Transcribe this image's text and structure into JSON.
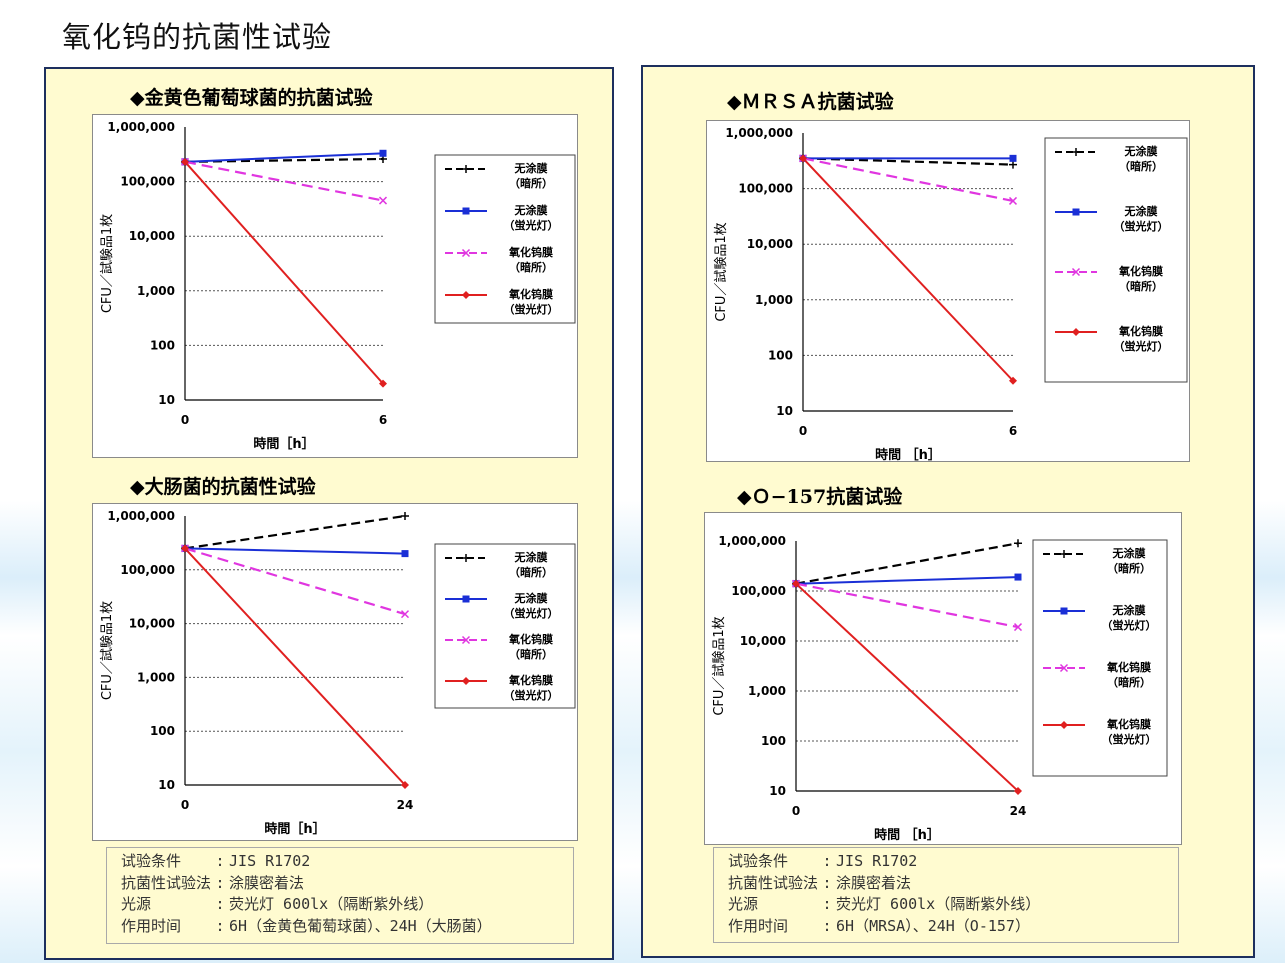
{
  "page_title": "氧化钨的抗菌性试验",
  "legend_labels": {
    "s1": [
      "无涂膜",
      "（暗所）"
    ],
    "s2": [
      "无涂膜",
      "（蛍光灯）"
    ],
    "s3": [
      "氧化钨膜",
      "（暗所）"
    ],
    "s4": [
      "氧化钨膜",
      "（蛍光灯）"
    ]
  },
  "colors": {
    "s1": "#000000",
    "s2": "#1a2fd6",
    "s3": "#e036e0",
    "s4": "#e02020"
  },
  "chart_data": [
    {
      "type": "line",
      "title": "◆金黄色葡萄球菌的抗菌试验",
      "xlabel": "時間［h］",
      "ylabel": "CFU／試験品1枚",
      "y_scale": "log",
      "ylim": [
        10,
        1000000
      ],
      "y_ticks": [
        "1,000,000",
        "100,000",
        "10,000",
        "1,000",
        "100",
        "10"
      ],
      "x": [
        0,
        6
      ],
      "x_ticks": [
        "0",
        "6"
      ],
      "legend_position": "right",
      "series": [
        {
          "name": "无涂膜（暗所）",
          "values": [
            230000,
            260000
          ]
        },
        {
          "name": "无涂膜（蛍光灯）",
          "values": [
            230000,
            330000
          ]
        },
        {
          "name": "氧化钨膜（暗所）",
          "values": [
            230000,
            45000
          ]
        },
        {
          "name": "氧化钨膜（蛍光灯）",
          "values": [
            230000,
            20
          ]
        }
      ]
    },
    {
      "type": "line",
      "title": "◆大肠菌的抗菌性试验",
      "xlabel": "時間［h］",
      "ylabel": "CFU／試験品1枚",
      "y_scale": "log",
      "ylim": [
        10,
        1000000
      ],
      "y_ticks": [
        "1,000,000",
        "100,000",
        "10,000",
        "1,000",
        "100",
        "10"
      ],
      "x": [
        0,
        24
      ],
      "x_ticks": [
        "0",
        "24"
      ],
      "legend_position": "right",
      "series": [
        {
          "name": "无涂膜（暗所）",
          "values": [
            250000,
            1000000
          ]
        },
        {
          "name": "无涂膜（蛍光灯）",
          "values": [
            250000,
            200000
          ]
        },
        {
          "name": "氧化钨膜（暗所）",
          "values": [
            250000,
            15000
          ]
        },
        {
          "name": "氧化钨膜（蛍光灯）",
          "values": [
            250000,
            10
          ]
        }
      ]
    },
    {
      "type": "line",
      "title": "◆ＭＲＳＡ抗菌试验",
      "xlabel": "時間 ［h］",
      "ylabel": "CFU／試験品1枚",
      "y_scale": "log",
      "ylim": [
        10,
        1000000
      ],
      "y_ticks": [
        "1,000,000",
        "100,000",
        "10,000",
        "1,000",
        "100",
        "10"
      ],
      "x": [
        0,
        6
      ],
      "x_ticks": [
        "0",
        "6"
      ],
      "legend_position": "right",
      "series": [
        {
          "name": "无涂膜（暗所）",
          "values": [
            350000,
            270000
          ]
        },
        {
          "name": "无涂膜（蛍光灯）",
          "values": [
            350000,
            350000
          ]
        },
        {
          "name": "氧化钨膜（暗所）",
          "values": [
            350000,
            60000
          ]
        },
        {
          "name": "氧化钨膜（蛍光灯）",
          "values": [
            350000,
            35
          ]
        }
      ]
    },
    {
      "type": "line",
      "title": "◆Ｏ−157抗菌试验",
      "xlabel": "時間 ［h］",
      "ylabel": "CFU／試験品1枚",
      "y_scale": "log",
      "ylim": [
        10,
        1000000
      ],
      "y_ticks": [
        "1,000,000",
        "100,000",
        "10,000",
        "1,000",
        "100",
        "10"
      ],
      "x": [
        0,
        24
      ],
      "x_ticks": [
        "0",
        "24"
      ],
      "legend_position": "right",
      "series": [
        {
          "name": "无涂膜（暗所）",
          "values": [
            140000,
            900000
          ]
        },
        {
          "name": "无涂膜（蛍光灯）",
          "values": [
            140000,
            190000
          ]
        },
        {
          "name": "氧化钨膜（暗所）",
          "values": [
            140000,
            19000
          ]
        },
        {
          "name": "氧化钨膜（蛍光灯）",
          "values": [
            140000,
            10
          ]
        }
      ]
    }
  ],
  "conditions_left": [
    {
      "key": "试验条件　　",
      "sep": ":",
      "value": "JIS R1702"
    },
    {
      "key": "抗菌性试验法",
      "sep": ":",
      "value": "涂膜密着法"
    },
    {
      "key": "光源　　　　",
      "sep": ":",
      "value": "荧光灯 600lx（隔断紫外线）"
    },
    {
      "key": "作用时间　　",
      "sep": ":",
      "value": "6H（金黄色葡萄球菌）、24H（大肠菌）"
    }
  ],
  "conditions_right": [
    {
      "key": "试验条件　　",
      "sep": ":",
      "value": "JIS R1702"
    },
    {
      "key": "抗菌性试验法",
      "sep": ":",
      "value": "涂膜密着法"
    },
    {
      "key": "光源　　　　",
      "sep": ":",
      "value": "荧光灯 600lx（隔断紫外线）"
    },
    {
      "key": "作用时间　　",
      "sep": ":",
      "value": "6H（MRSA）、24H（O-157）"
    }
  ]
}
